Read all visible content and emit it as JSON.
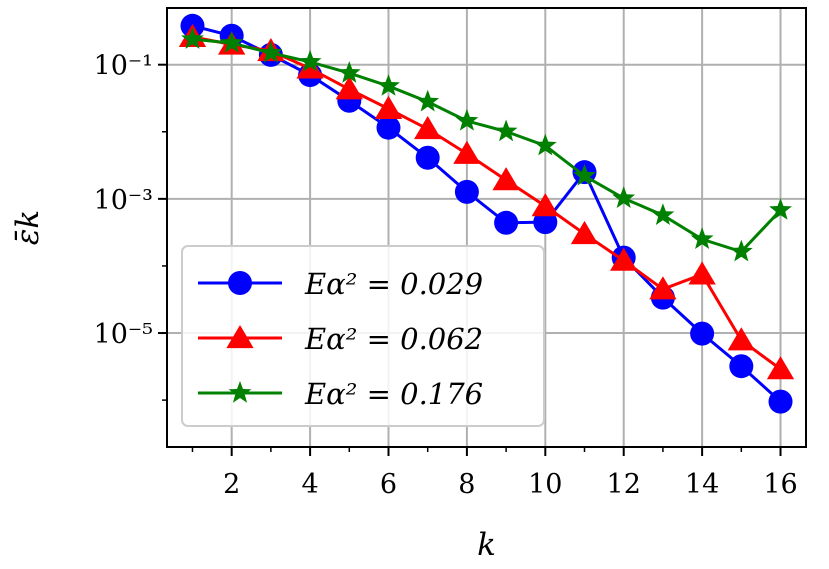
{
  "chart_data": {
    "type": "line",
    "xlabel": "k",
    "ylabel": "ε̄k",
    "y_scale": "log",
    "grid": true,
    "legend_position": "lower-left",
    "xlim": [
      0.35,
      16.65
    ],
    "ylim": [
      2e-07,
      0.7
    ],
    "x_ticks": [
      2,
      4,
      6,
      8,
      10,
      12,
      14,
      16
    ],
    "x_tick_labels": [
      "2",
      "4",
      "6",
      "8",
      "10",
      "12",
      "14",
      "16"
    ],
    "y_ticks": [
      0.1,
      0.001,
      1e-05
    ],
    "y_tick_labels": [
      "10⁻¹",
      "10⁻³",
      "10⁻⁵"
    ],
    "x": [
      1,
      2,
      3,
      4,
      5,
      6,
      7,
      8,
      9,
      10,
      11,
      12,
      13,
      14,
      15,
      16
    ],
    "series": [
      {
        "name": "Eα² = 0.029",
        "color": "#0000ff",
        "marker": "circle",
        "values": [
          0.38,
          0.27,
          0.14,
          0.07,
          0.029,
          0.0115,
          0.0041,
          0.00127,
          0.00044,
          0.00045,
          0.0025,
          0.000133,
          3.37e-05,
          9.8e-06,
          3.2e-06,
          9.5e-07
        ]
      },
      {
        "name": "Eα² = 0.062",
        "color": "#ff0000",
        "marker": "triangle",
        "values": [
          0.26,
          0.2,
          0.16,
          0.088,
          0.043,
          0.022,
          0.011,
          0.0047,
          0.0019,
          0.00078,
          0.0003,
          0.00012,
          4.5e-05,
          7.5e-05,
          7.8e-06,
          2.9e-06
        ]
      },
      {
        "name": "Eα² = 0.176",
        "color": "#008000",
        "marker": "star",
        "values": [
          0.24,
          0.21,
          0.15,
          0.11,
          0.075,
          0.048,
          0.028,
          0.0145,
          0.0101,
          0.0062,
          0.0022,
          0.00102,
          0.00057,
          0.00025,
          0.000163,
          0.00068
        ]
      }
    ]
  }
}
